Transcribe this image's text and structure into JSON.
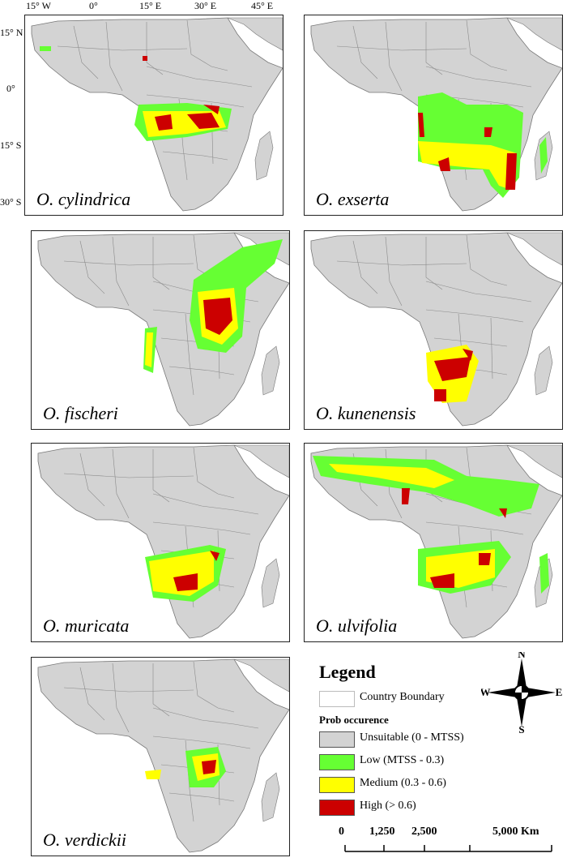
{
  "axes": {
    "longitude_labels": [
      "15° W",
      "0°",
      "15° E",
      "30° E",
      "45° E"
    ],
    "latitude_labels": [
      "15° N",
      "0°",
      "15° S",
      "30° S"
    ]
  },
  "panels": [
    {
      "species": "O. cylindrica"
    },
    {
      "species": "O. exserta"
    },
    {
      "species": "O. fischeri"
    },
    {
      "species": "O. kunenensis"
    },
    {
      "species": "O. muricata"
    },
    {
      "species": "O. ulvifolia"
    },
    {
      "species": "O. verdickii"
    }
  ],
  "legend": {
    "title": "Legend",
    "boundary_label": "Country Boundary",
    "subtitle": "Prob occurence",
    "classes": [
      {
        "label": "Unsuitable (0 - MTSS)",
        "color": "#d3d3d3"
      },
      {
        "label": "Low (MTSS - 0.3)",
        "color": "#66ff33"
      },
      {
        "label": "Medium (0.3 - 0.6)",
        "color": "#ffff00"
      },
      {
        "label": "High (> 0.6)",
        "color": "#cc0000"
      }
    ]
  },
  "compass": {
    "n": "N",
    "s": "S",
    "e": "E",
    "w": "W"
  },
  "scale_bar": {
    "labels": [
      "0",
      "1,250",
      "2,500",
      "5,000 Km"
    ]
  }
}
